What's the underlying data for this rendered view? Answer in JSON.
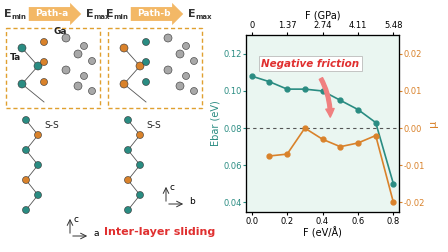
{
  "diagram": {
    "panels": [
      {
        "start": {
          "main": "E",
          "sub": "min"
        },
        "path": "Path-a",
        "end": {
          "main": "E",
          "sub": "max"
        },
        "atom_labels": [
          "Ta",
          "Ga"
        ],
        "bond_label": "S-S",
        "axes": [
          "c",
          "a"
        ]
      },
      {
        "start": {
          "main": "E",
          "sub": "min"
        },
        "path": "Path-b",
        "end": {
          "main": "E",
          "sub": "max"
        },
        "atom_labels": [],
        "bond_label": "S-S",
        "axes": [
          "c",
          "b"
        ]
      }
    ],
    "caption": "Inter-layer sliding"
  },
  "chart_data": {
    "type": "line",
    "x": [
      0.0,
      0.1,
      0.2,
      0.3,
      0.4,
      0.5,
      0.6,
      0.7,
      0.8
    ],
    "xlabel": "F (eV/Å)",
    "xlim": [
      -0.03,
      0.83
    ],
    "xticks": [
      0.0,
      0.2,
      0.4,
      0.6,
      0.8
    ],
    "x2label": "F (GPa)",
    "x2ticks": [
      {
        "value": 0.0,
        "label": "0"
      },
      {
        "value": 0.2,
        "label": "1.37"
      },
      {
        "value": 0.4,
        "label": "2.74"
      },
      {
        "value": 0.6,
        "label": "4.11"
      },
      {
        "value": 0.8,
        "label": "5.48"
      }
    ],
    "ylabel": "Ebar (eV)",
    "ylim": [
      0.035,
      0.13
    ],
    "yticks": [
      0.04,
      0.06,
      0.08,
      {
        "value": 0.1,
        "label": "0.10"
      },
      0.12
    ],
    "y2label": "μ",
    "y2lim": [
      -0.0225,
      0.025
    ],
    "y2ticks": [
      -0.02,
      -0.01,
      {
        "value": 0.0,
        "label": "0.00"
      },
      0.01,
      0.02
    ],
    "series": [
      {
        "name": "Ebar",
        "color": "#2a8c82",
        "marker": "circle",
        "line_style": "solid",
        "values": [
          0.108,
          0.105,
          0.101,
          0.101,
          0.1,
          0.095,
          0.09,
          0.083,
          0.05
        ]
      },
      {
        "name": "μ",
        "axis": "y2",
        "color": "#d9822b",
        "marker": "circle",
        "line_style": "solid",
        "values": [
          null,
          -0.0075,
          -0.007,
          0.0,
          -0.003,
          -0.005,
          -0.004,
          -0.002,
          -0.02
        ]
      }
    ],
    "reference_y2": 0.0,
    "annotations": [
      "Negative friction"
    ]
  }
}
